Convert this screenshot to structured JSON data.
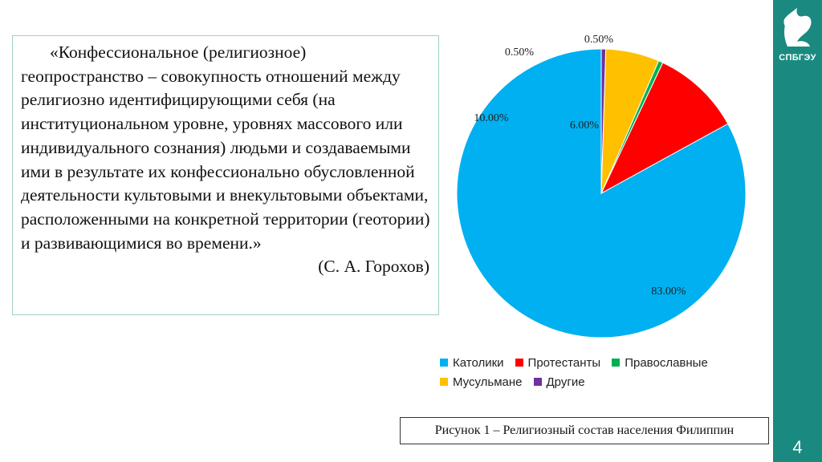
{
  "slide": {
    "quote": "«Конфессиональное (религиозное) геопространство – совокупность отношений между религиозно идентифицирующими себя (на институциональном уровне, уровнях массового или индивидуального сознания) людьми и создаваемыми ими в результате их конфессионально обусловленной деятельности культовыми и внекультовыми объектами, расположенными на конкретной территории (геотории) и развивающимися во времени.»",
    "author": "(С. А. Горохов)",
    "caption": "Рисунок 1 – Религиозный состав населения Филиппин",
    "page_number": "4",
    "logo_text": "СПБГЭУ",
    "accent_color": "#1a8a80"
  },
  "chart_data": {
    "type": "pie",
    "title": "",
    "slices": [
      {
        "name": "Католики",
        "value": 83.0,
        "label": "83.00%",
        "color": "#00b0f0"
      },
      {
        "name": "Протестанты",
        "value": 10.0,
        "label": "10.00%",
        "color": "#ff0000"
      },
      {
        "name": "Православные",
        "value": 0.5,
        "label": "0.50%",
        "color": "#00b050"
      },
      {
        "name": "Мусульмане",
        "value": 6.0,
        "label": "6.00%",
        "color": "#ffc000"
      },
      {
        "name": "Другие",
        "value": 0.5,
        "label": "0.50%",
        "color": "#7030a0"
      }
    ],
    "legend_position": "bottom"
  }
}
